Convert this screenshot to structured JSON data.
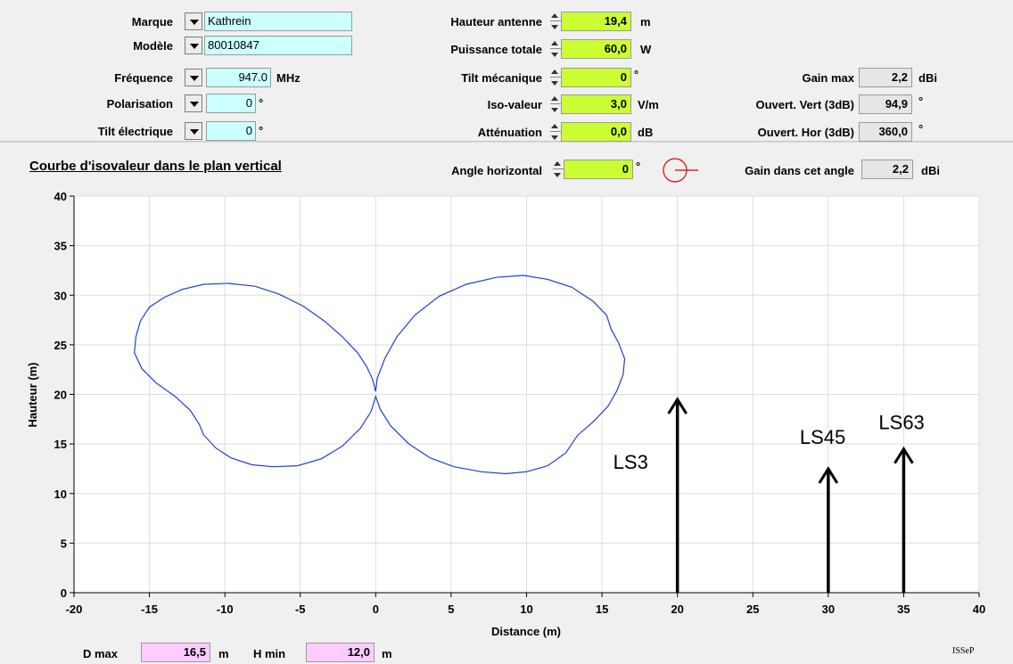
{
  "params": {
    "marque": {
      "label": "Marque",
      "value": "Kathrein"
    },
    "modele": {
      "label": "Modèle",
      "value": "80010847"
    },
    "frequence": {
      "label": "Fréquence",
      "value": "947.0",
      "unit": "MHz"
    },
    "polarisation": {
      "label": "Polarisation",
      "value": "0",
      "unit": "°"
    },
    "tilt_electrique": {
      "label": "Tilt électrique",
      "value": "0",
      "unit": "°"
    },
    "hauteur_antenne": {
      "label": "Hauteur antenne",
      "value": "19,4",
      "unit": "m"
    },
    "puissance_totale": {
      "label": "Puissance totale",
      "value": "60,0",
      "unit": "W"
    },
    "tilt_mecanique": {
      "label": "Tilt mécanique",
      "value": "0",
      "unit": "°"
    },
    "iso_valeur": {
      "label": "Iso-valeur",
      "value": "3,0",
      "unit": "V/m"
    },
    "attenuation": {
      "label": "Atténuation",
      "value": "0,0",
      "unit": "dB"
    },
    "gain_max": {
      "label": "Gain max",
      "value": "2,2",
      "unit": "dBi"
    },
    "ouvert_vert": {
      "label": "Ouvert. Vert (3dB)",
      "value": "94,9",
      "unit": "°"
    },
    "ouvert_hor": {
      "label": "Ouvert. Hor (3dB)",
      "value": "360,0",
      "unit": "°"
    }
  },
  "plot_header": {
    "title": "Courbe d'isovaleur dans le plan vertical",
    "angle_label": "Angle horizontal",
    "angle_value": "0",
    "angle_unit": "°",
    "gain_angle_label": "Gain dans cet angle",
    "gain_angle_value": "2,2",
    "gain_angle_unit": "dBi"
  },
  "footer": {
    "dmax_label": "D max",
    "dmax_value": "16,5",
    "dmax_unit": "m",
    "hmin_label": "H min",
    "hmin_value": "12,0",
    "hmin_unit": "m",
    "brand": "ISSeP"
  },
  "colors": {
    "curve": "#1f3fd6",
    "lime": "#ccff33",
    "cyan": "#ccffff",
    "pink": "#ffccff",
    "indicator": "#e00000"
  },
  "chart_data": {
    "type": "line",
    "xlabel": "Distance (m)",
    "ylabel": "Hauteur (m)",
    "xlim": [
      -20,
      40
    ],
    "ylim": [
      0,
      40
    ],
    "xticks": [
      -20,
      -15,
      -10,
      -5,
      0,
      5,
      10,
      15,
      20,
      25,
      30,
      35,
      40
    ],
    "yticks": [
      0,
      5,
      10,
      15,
      20,
      25,
      30,
      35,
      40
    ],
    "grid": true,
    "series": [
      {
        "points": [
          [
            0,
            20.3
          ],
          [
            -0.2,
            21.5
          ],
          [
            -0.6,
            22.8
          ],
          [
            -1.2,
            24.2
          ],
          [
            -2.2,
            25.8
          ],
          [
            -3.4,
            27.4
          ],
          [
            -4.8,
            28.9
          ],
          [
            -6.4,
            30.1
          ],
          [
            -8.0,
            30.9
          ],
          [
            -9.8,
            31.2
          ],
          [
            -11.4,
            31.1
          ],
          [
            -12.8,
            30.6
          ],
          [
            -14.0,
            29.8
          ],
          [
            -15.0,
            28.8
          ],
          [
            -15.6,
            27.4
          ],
          [
            -15.9,
            25.8
          ],
          [
            -16.0,
            24.2
          ],
          [
            -15.5,
            22.6
          ],
          [
            -14.6,
            21.2
          ],
          [
            -13.3,
            19.8
          ],
          [
            -12.3,
            18.4
          ],
          [
            -11.7,
            17.0
          ],
          [
            -11.4,
            15.9
          ],
          [
            -10.6,
            14.6
          ],
          [
            -9.6,
            13.6
          ],
          [
            -8.2,
            12.9
          ],
          [
            -6.8,
            12.7
          ],
          [
            -5.2,
            12.8
          ],
          [
            -3.6,
            13.5
          ],
          [
            -2.2,
            14.8
          ],
          [
            -1.0,
            16.6
          ],
          [
            -0.3,
            18.3
          ],
          [
            0,
            19.8
          ],
          [
            0.3,
            18.5
          ],
          [
            1.0,
            16.8
          ],
          [
            2.2,
            15.0
          ],
          [
            3.6,
            13.6
          ],
          [
            5.2,
            12.7
          ],
          [
            7.0,
            12.2
          ],
          [
            8.6,
            12.0
          ],
          [
            10.0,
            12.2
          ],
          [
            11.4,
            12.8
          ],
          [
            12.6,
            14.1
          ],
          [
            13.4,
            15.9
          ],
          [
            14.4,
            17.2
          ],
          [
            15.4,
            18.8
          ],
          [
            16.0,
            20.4
          ],
          [
            16.4,
            22.0
          ],
          [
            16.5,
            23.6
          ],
          [
            16.1,
            25.2
          ],
          [
            15.6,
            26.6
          ],
          [
            15.3,
            28.0
          ],
          [
            14.4,
            29.4
          ],
          [
            13.0,
            30.8
          ],
          [
            11.4,
            31.6
          ],
          [
            9.8,
            32.0
          ],
          [
            8.0,
            31.8
          ],
          [
            6.0,
            31.1
          ],
          [
            4.2,
            29.9
          ],
          [
            2.6,
            28.0
          ],
          [
            1.4,
            25.8
          ],
          [
            0.6,
            23.6
          ],
          [
            0.1,
            21.6
          ],
          [
            0,
            20.3
          ]
        ]
      }
    ],
    "annotations": [
      {
        "text": "LS3",
        "x": 20,
        "y_from": 0,
        "y_to": 19.5
      },
      {
        "text": "LS45",
        "x": 30,
        "y_from": 0,
        "y_to": 12.5
      },
      {
        "text": "LS63",
        "x": 35,
        "y_from": 0,
        "y_to": 14.5
      }
    ]
  }
}
